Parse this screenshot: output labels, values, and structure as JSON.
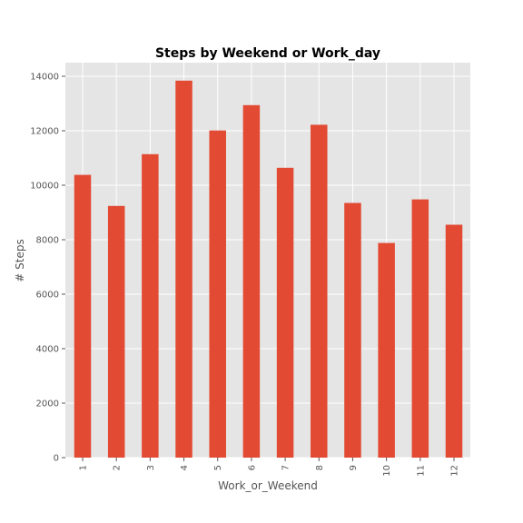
{
  "chart_data": {
    "type": "bar",
    "title": "Steps by Weekend or Work_day",
    "xlabel": "Work_or_Weekend",
    "ylabel": "# Steps",
    "categories": [
      "1",
      "2",
      "3",
      "4",
      "5",
      "6",
      "7",
      "8",
      "9",
      "10",
      "11",
      "12"
    ],
    "values": [
      10380,
      9240,
      11140,
      13840,
      12010,
      12940,
      10640,
      12220,
      9350,
      7880,
      9480,
      8550
    ],
    "ylim": [
      0,
      14500
    ],
    "yticks": [
      0,
      2000,
      4000,
      6000,
      8000,
      10000,
      12000,
      14000
    ],
    "ytick_labels": [
      "0",
      "2000",
      "4000",
      "6000",
      "8000",
      "10000",
      "12000",
      "14000"
    ],
    "bar_color": "#E24A33",
    "plot_background": "#E5E5E5",
    "grid": true,
    "legend": false
  }
}
